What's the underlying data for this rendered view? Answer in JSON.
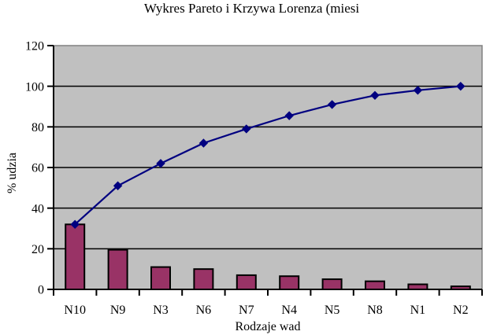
{
  "chart": {
    "title": "Wykres Pareto i Krzywa Lorenza (miesi",
    "x_axis_title": "Rodzaje wad",
    "y_axis_title": "% udzia"
  },
  "chart_data": {
    "type": "combo",
    "title": "Wykres Pareto i Krzywa Lorenza (miesi",
    "xlabel": "Rodzaje wad",
    "ylabel": "% udzia",
    "categories": [
      "N10",
      "N9",
      "N3",
      "N6",
      "N7",
      "N4",
      "N5",
      "N8",
      "N1",
      "N2"
    ],
    "series": [
      {
        "name": "pareto-bars",
        "type": "bar",
        "color": "#993366",
        "border_color": "#000000",
        "values": [
          32,
          19.5,
          11,
          10,
          7,
          6.5,
          5,
          4,
          2.5,
          1.5
        ]
      },
      {
        "name": "lorenz-curve",
        "type": "line",
        "color": "#000080",
        "marker": "diamond",
        "values": [
          32,
          51,
          62,
          72,
          79,
          85.5,
          91,
          95.5,
          98,
          100
        ]
      }
    ],
    "ylim": [
      0,
      120
    ],
    "yticks": [
      0,
      20,
      40,
      60,
      80,
      100,
      120
    ],
    "grid": true,
    "legend": false,
    "plot_bg": "#C0C0C0",
    "plot_border_color": "#808080",
    "gridline_color": "#000000",
    "axis_color": "#000000"
  }
}
